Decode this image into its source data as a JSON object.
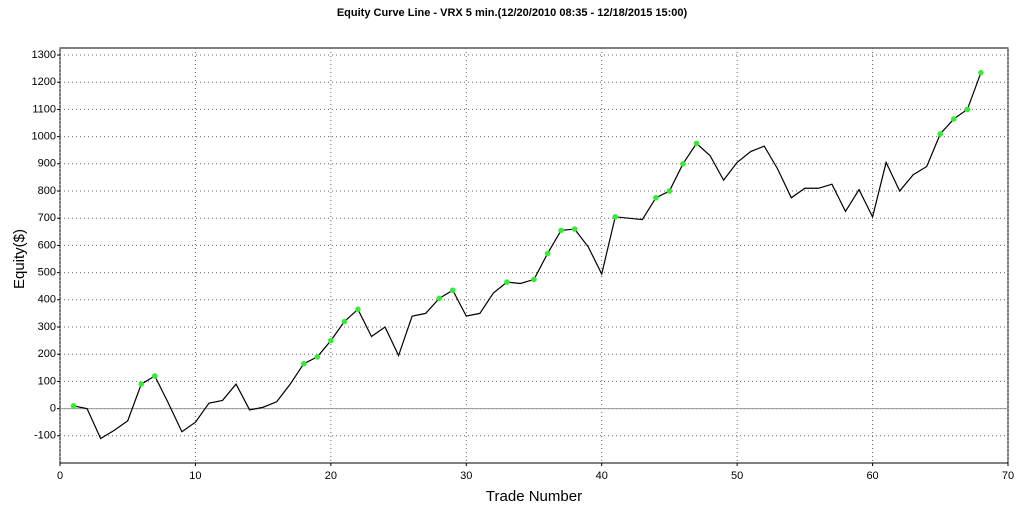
{
  "chart_data": {
    "type": "line",
    "title": "Equity Curve Line - VRX 5 min.(12/20/2010 08:35 - 12/18/2015 15:00)",
    "x_label": "Trade Number",
    "y_label": "Equity($)",
    "x": [
      1,
      2,
      3,
      4,
      5,
      6,
      7,
      8,
      9,
      10,
      11,
      12,
      13,
      14,
      15,
      16,
      17,
      18,
      19,
      20,
      21,
      22,
      23,
      24,
      25,
      26,
      27,
      28,
      29,
      30,
      31,
      32,
      33,
      34,
      35,
      36,
      37,
      38,
      39,
      40,
      41,
      42,
      43,
      44,
      45,
      46,
      47,
      48,
      49,
      50,
      51,
      52,
      53,
      54,
      55,
      56,
      57,
      58,
      59,
      60,
      61,
      62,
      63,
      64,
      65,
      66,
      67,
      68
    ],
    "series": [
      {
        "name": "Equity",
        "color": "#000000",
        "marker_color": "#33ee33",
        "values": [
          10,
          0,
          -110,
          -80,
          -45,
          90,
          120,
          20,
          -85,
          -50,
          20,
          30,
          90,
          -5,
          5,
          25,
          90,
          165,
          190,
          250,
          320,
          365,
          265,
          300,
          195,
          340,
          350,
          405,
          435,
          340,
          350,
          425,
          465,
          460,
          475,
          570,
          655,
          660,
          595,
          495,
          705,
          700,
          695,
          775,
          800,
          900,
          975,
          930,
          840,
          905,
          945,
          965,
          880,
          775,
          810,
          810,
          825,
          725,
          805,
          705,
          905,
          800,
          860,
          890,
          1010,
          1065,
          1100,
          1235
        ]
      }
    ],
    "xlim": [
      0,
      70
    ],
    "xticks": [
      0,
      10,
      20,
      30,
      40,
      50,
      60,
      70
    ],
    "ylim": [
      -200,
      1300
    ],
    "yticks": [
      -100,
      0,
      100,
      200,
      300,
      400,
      500,
      600,
      700,
      800,
      900,
      1000,
      1100,
      1200,
      1300
    ],
    "grid": true
  }
}
